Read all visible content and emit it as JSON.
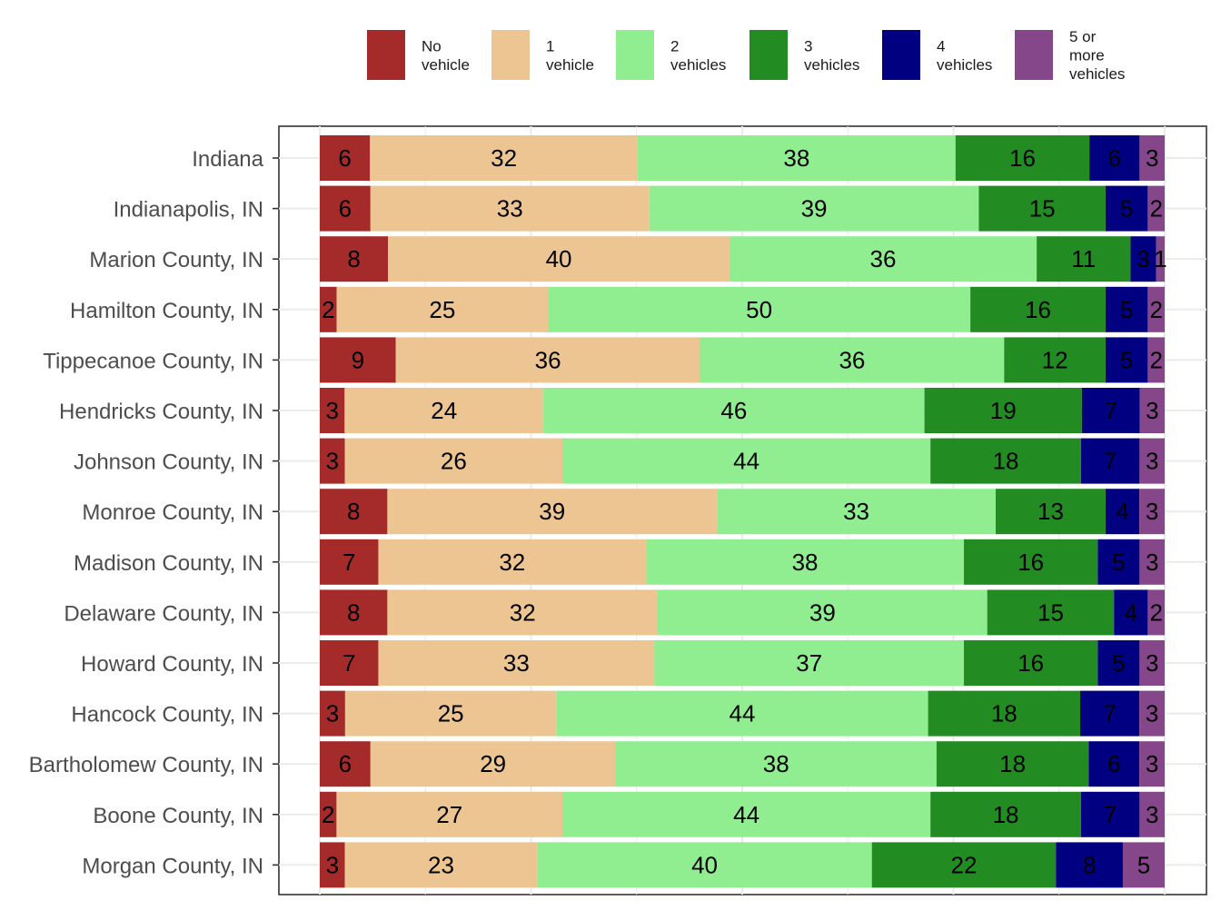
{
  "chart_data": {
    "type": "bar",
    "orientation": "horizontal",
    "stacked": true,
    "normalized": true,
    "legend_position": "top",
    "grid": true,
    "xlim": [
      0,
      100
    ],
    "categories": [
      "Indiana",
      "Indianapolis, IN",
      "Marion County, IN",
      "Hamilton County, IN",
      "Tippecanoe County, IN",
      "Hendricks County, IN",
      "Johnson County, IN",
      "Monroe County, IN",
      "Madison County, IN",
      "Delaware County, IN",
      "Howard County, IN",
      "Hancock County, IN",
      "Bartholomew County, IN",
      "Boone County, IN",
      "Morgan County, IN"
    ],
    "series": [
      {
        "name": "No vehicle",
        "legend_lines": [
          "No",
          "vehicle"
        ],
        "color": "#A52A2A",
        "values": [
          6,
          6,
          8,
          2,
          9,
          3,
          3,
          8,
          7,
          8,
          7,
          3,
          6,
          2,
          3
        ]
      },
      {
        "name": "1 vehicle",
        "legend_lines": [
          "1",
          "vehicle"
        ],
        "color": "#EDC592",
        "values": [
          32,
          33,
          40,
          25,
          36,
          24,
          26,
          39,
          32,
          32,
          33,
          25,
          29,
          27,
          23
        ]
      },
      {
        "name": "2 vehicles",
        "legend_lines": [
          "2",
          "vehicles"
        ],
        "color": "#90EE90",
        "values": [
          38,
          39,
          36,
          50,
          36,
          46,
          44,
          33,
          38,
          39,
          37,
          44,
          38,
          44,
          40
        ]
      },
      {
        "name": "3 vehicles",
        "legend_lines": [
          "3",
          "vehicles"
        ],
        "color": "#228B22",
        "values": [
          16,
          15,
          11,
          16,
          12,
          19,
          18,
          13,
          16,
          15,
          16,
          18,
          18,
          18,
          22
        ]
      },
      {
        "name": "4 vehicles",
        "legend_lines": [
          "4",
          "vehicles"
        ],
        "color": "#000080",
        "values": [
          6,
          5,
          3,
          5,
          5,
          7,
          7,
          4,
          5,
          4,
          5,
          7,
          6,
          7,
          8
        ]
      },
      {
        "name": "5 or more vehicles",
        "legend_lines": [
          "5 or",
          "more",
          "vehicles"
        ],
        "color": "#86478A",
        "values": [
          3,
          2,
          1,
          2,
          2,
          3,
          3,
          3,
          3,
          2,
          3,
          3,
          3,
          3,
          5
        ]
      }
    ]
  }
}
